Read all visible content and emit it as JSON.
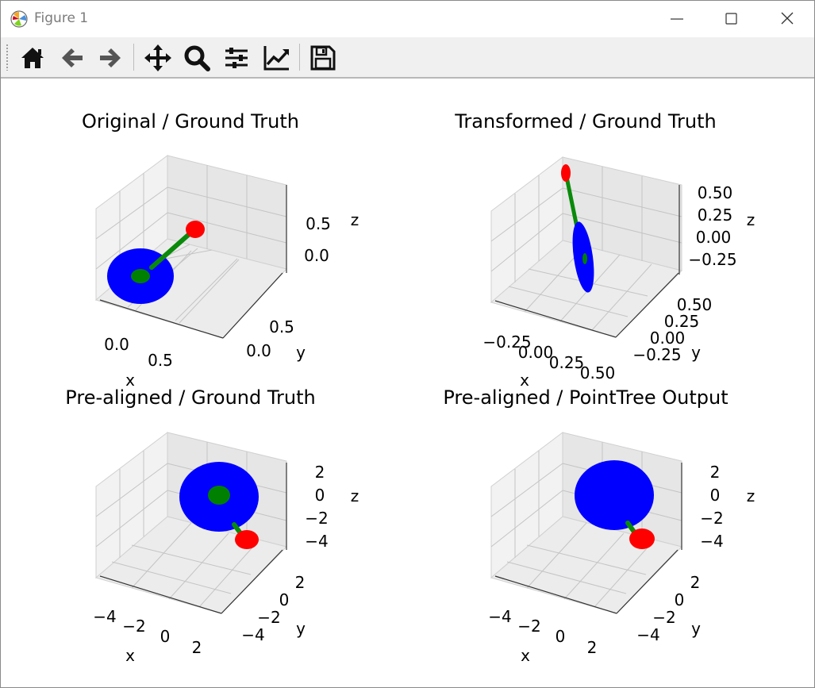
{
  "window": {
    "title": "Figure 1",
    "controls": [
      "minimize",
      "maximize",
      "close"
    ]
  },
  "toolbar": {
    "buttons": [
      {
        "name": "home-icon"
      },
      {
        "name": "back-arrow-icon"
      },
      {
        "name": "forward-arrow-icon"
      },
      {
        "name": "pan-move-icon"
      },
      {
        "name": "zoom-magnifier-icon"
      },
      {
        "name": "configure-subplots-icon"
      },
      {
        "name": "edit-axis-curves-icon"
      },
      {
        "name": "save-floppy-icon"
      }
    ]
  },
  "colors": {
    "disk": "#0000ff",
    "stem": "#008000",
    "head": "#ff0000",
    "pane": "#ebebeb",
    "grid": "#c8c8c8"
  },
  "chart_data": [
    {
      "type": "scatter",
      "projection": "3d",
      "title": "Original / Ground Truth",
      "xlabel": "x",
      "ylabel": "y",
      "zlabel": "z",
      "xticks": [
        "0.0",
        "0.5"
      ],
      "yticks": [
        "0.0",
        "0.5"
      ],
      "zticks": [
        "0.5",
        "0.0"
      ],
      "series": [
        {
          "color": "#0000ff",
          "shape": "disk"
        },
        {
          "color": "#008000",
          "shape": "stem"
        },
        {
          "color": "#ff0000",
          "shape": "head"
        }
      ]
    },
    {
      "type": "scatter",
      "projection": "3d",
      "title": "Transformed / Ground Truth",
      "xlabel": "x",
      "ylabel": "y",
      "zlabel": "z",
      "xticks": [
        "−0.25",
        "0.00",
        "0.25",
        "0.50"
      ],
      "yticks": [
        "0.50",
        "0.25",
        "0.00",
        "−0.25"
      ],
      "zticks": [
        "0.50",
        "0.25",
        "0.00",
        "−0.25"
      ],
      "series": [
        {
          "color": "#0000ff",
          "shape": "disk"
        },
        {
          "color": "#008000",
          "shape": "stem"
        },
        {
          "color": "#ff0000",
          "shape": "head"
        }
      ]
    },
    {
      "type": "scatter",
      "projection": "3d",
      "title": "Pre-aligned / Ground Truth",
      "xlabel": "x",
      "ylabel": "y",
      "zlabel": "z",
      "xticks": [
        "−4",
        "−2",
        "0",
        "2"
      ],
      "yticks": [
        "2",
        "0",
        "−2",
        "−4"
      ],
      "zticks": [
        "2",
        "0",
        "−2",
        "−4"
      ],
      "series": [
        {
          "color": "#0000ff",
          "shape": "disk"
        },
        {
          "color": "#008000",
          "shape": "stem"
        },
        {
          "color": "#ff0000",
          "shape": "head"
        }
      ]
    },
    {
      "type": "scatter",
      "projection": "3d",
      "title": "Pre-aligned / PointTree Output",
      "xlabel": "x",
      "ylabel": "y",
      "zlabel": "z",
      "xticks": [
        "−4",
        "−2",
        "0",
        "2"
      ],
      "yticks": [
        "2",
        "0",
        "−2",
        "−4"
      ],
      "zticks": [
        "2",
        "0",
        "−2",
        "−4"
      ],
      "series": [
        {
          "color": "#0000ff",
          "shape": "disk"
        },
        {
          "color": "#008000",
          "shape": "stem"
        },
        {
          "color": "#ff0000",
          "shape": "head"
        }
      ]
    }
  ]
}
